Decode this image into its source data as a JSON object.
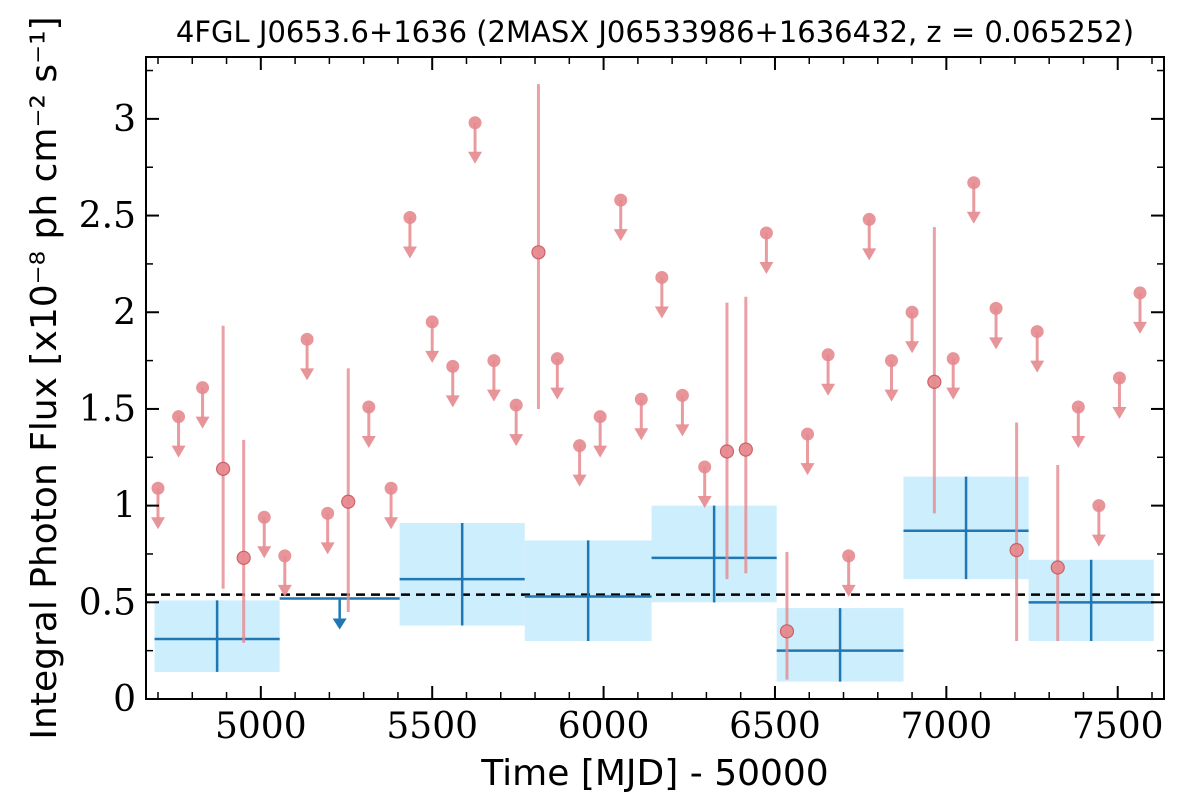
{
  "chart_data": {
    "type": "scatter",
    "title": "4FGL J0653.6+1636 (2MASX J06533986+1636432, z = 0.065252)",
    "xlabel": "Time [MJD] - 50000",
    "ylabel": "Integral Photon Flux [x10⁻⁸ ph cm⁻² s⁻¹]",
    "xlim": [
      4665,
      7635
    ],
    "ylim": [
      0,
      3.32
    ],
    "x_ticks": [
      "5000",
      "5500",
      "6000",
      "6500",
      "7000",
      "7500"
    ],
    "y_ticks": [
      "0",
      "0.5",
      "1",
      "1.5",
      "2",
      "2.5",
      "3"
    ],
    "reference_level": 0.54,
    "colors": {
      "short_bins": "#e68a8f",
      "long_bins": "#1f77b4",
      "long_bins_band": "#cdeefc",
      "reference": "#000000"
    },
    "short_bins_detections": [
      {
        "x": 4890,
        "y": 1.19,
        "lo": 0.57,
        "hi": 1.93
      },
      {
        "x": 4950,
        "y": 0.73,
        "lo": 0.29,
        "hi": 1.34
      },
      {
        "x": 5255,
        "y": 1.02,
        "lo": 0.45,
        "hi": 1.71
      },
      {
        "x": 5810,
        "y": 2.31,
        "lo": 1.5,
        "hi": 3.18
      },
      {
        "x": 6360,
        "y": 1.28,
        "lo": 0.62,
        "hi": 2.05
      },
      {
        "x": 6415,
        "y": 1.29,
        "lo": 0.65,
        "hi": 2.08
      },
      {
        "x": 6535,
        "y": 0.35,
        "lo": 0.1,
        "hi": 0.76
      },
      {
        "x": 6965,
        "y": 1.64,
        "lo": 0.96,
        "hi": 2.44
      },
      {
        "x": 7205,
        "y": 0.77,
        "lo": 0.3,
        "hi": 1.43
      },
      {
        "x": 7325,
        "y": 0.68,
        "lo": 0.3,
        "hi": 1.21
      }
    ],
    "short_bins_upper_limits": [
      {
        "x": 4700,
        "y": 1.09
      },
      {
        "x": 4760,
        "y": 1.46
      },
      {
        "x": 4830,
        "y": 1.61
      },
      {
        "x": 5010,
        "y": 0.94
      },
      {
        "x": 5070,
        "y": 0.74
      },
      {
        "x": 5135,
        "y": 1.86
      },
      {
        "x": 5195,
        "y": 0.96
      },
      {
        "x": 5315,
        "y": 1.51
      },
      {
        "x": 5380,
        "y": 1.09
      },
      {
        "x": 5435,
        "y": 2.49
      },
      {
        "x": 5500,
        "y": 1.95
      },
      {
        "x": 5560,
        "y": 1.72
      },
      {
        "x": 5625,
        "y": 2.98
      },
      {
        "x": 5680,
        "y": 1.75
      },
      {
        "x": 5745,
        "y": 1.52
      },
      {
        "x": 5865,
        "y": 1.76
      },
      {
        "x": 5930,
        "y": 1.31
      },
      {
        "x": 5990,
        "y": 1.46
      },
      {
        "x": 6050,
        "y": 2.58
      },
      {
        "x": 6110,
        "y": 1.55
      },
      {
        "x": 6170,
        "y": 2.18
      },
      {
        "x": 6230,
        "y": 1.57
      },
      {
        "x": 6295,
        "y": 1.2
      },
      {
        "x": 6475,
        "y": 2.41
      },
      {
        "x": 6595,
        "y": 1.37
      },
      {
        "x": 6655,
        "y": 1.78
      },
      {
        "x": 6715,
        "y": 0.74
      },
      {
        "x": 6775,
        "y": 2.48
      },
      {
        "x": 6840,
        "y": 1.75
      },
      {
        "x": 6900,
        "y": 2.0
      },
      {
        "x": 7020,
        "y": 1.76
      },
      {
        "x": 7080,
        "y": 2.67
      },
      {
        "x": 7145,
        "y": 2.02
      },
      {
        "x": 7265,
        "y": 1.9
      },
      {
        "x": 7385,
        "y": 1.51
      },
      {
        "x": 7445,
        "y": 1.0
      },
      {
        "x": 7505,
        "y": 1.66
      },
      {
        "x": 7565,
        "y": 2.1
      }
    ],
    "long_bins": [
      {
        "x0": 4690,
        "x1": 5055,
        "y": 0.31,
        "lo": 0.14,
        "hi": 0.51
      },
      {
        "x0": 5405,
        "x1": 5770,
        "y": 0.62,
        "lo": 0.38,
        "hi": 0.91
      },
      {
        "x0": 5770,
        "x1": 6140,
        "y": 0.53,
        "lo": 0.3,
        "hi": 0.82
      },
      {
        "x0": 6140,
        "x1": 6505,
        "y": 0.73,
        "lo": 0.5,
        "hi": 1.0
      },
      {
        "x0": 6505,
        "x1": 6875,
        "y": 0.25,
        "lo": 0.09,
        "hi": 0.47
      },
      {
        "x0": 6875,
        "x1": 7240,
        "y": 0.87,
        "lo": 0.62,
        "hi": 1.15
      },
      {
        "x0": 7240,
        "x1": 7605,
        "y": 0.5,
        "lo": 0.3,
        "hi": 0.72
      }
    ],
    "long_bins_upper_limits": [
      {
        "x0": 5055,
        "x1": 5405,
        "y": 0.52
      }
    ]
  }
}
